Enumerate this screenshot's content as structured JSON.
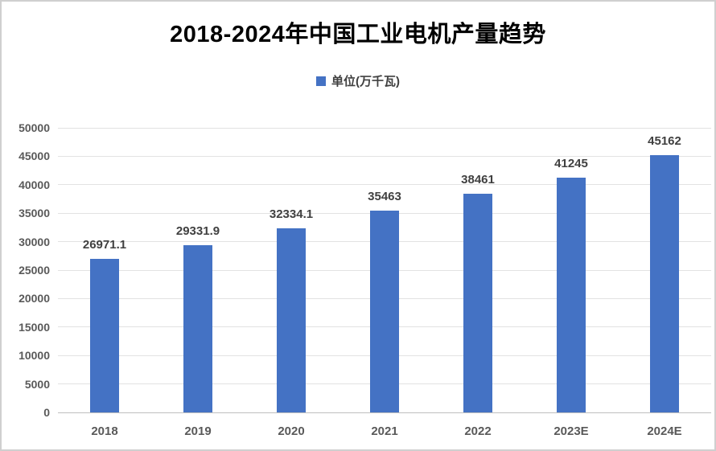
{
  "title": "2018-2024年中国工业电机产量趋势",
  "legend": {
    "label": "单位(万千瓦)",
    "marker_color": "#4472C4"
  },
  "chart_data": {
    "type": "bar",
    "title": "2018-2024年中国工业电机产量趋势",
    "series_name": "单位(万千瓦)",
    "categories": [
      "2018",
      "2019",
      "2020",
      "2021",
      "2022",
      "2023E",
      "2024E"
    ],
    "values": [
      26971.1,
      29331.9,
      32334.1,
      35463,
      38461,
      41245,
      45162
    ],
    "value_labels": [
      "26971.1",
      "29331.9",
      "32334.1",
      "35463",
      "38461",
      "41245",
      "45162"
    ],
    "xlabel": "",
    "ylabel": "",
    "ylim": [
      0,
      50000
    ],
    "yticks": [
      0,
      5000,
      10000,
      15000,
      20000,
      25000,
      30000,
      35000,
      40000,
      45000,
      50000
    ],
    "grid": true,
    "legend_position": "top",
    "bar_color": "#4472C4",
    "gridline_color": "#e2e2e2",
    "axis_line_color": "#bfbfbf",
    "data_label_color": "#404040",
    "tick_label_color": "#595959",
    "title_color": "#000000"
  }
}
